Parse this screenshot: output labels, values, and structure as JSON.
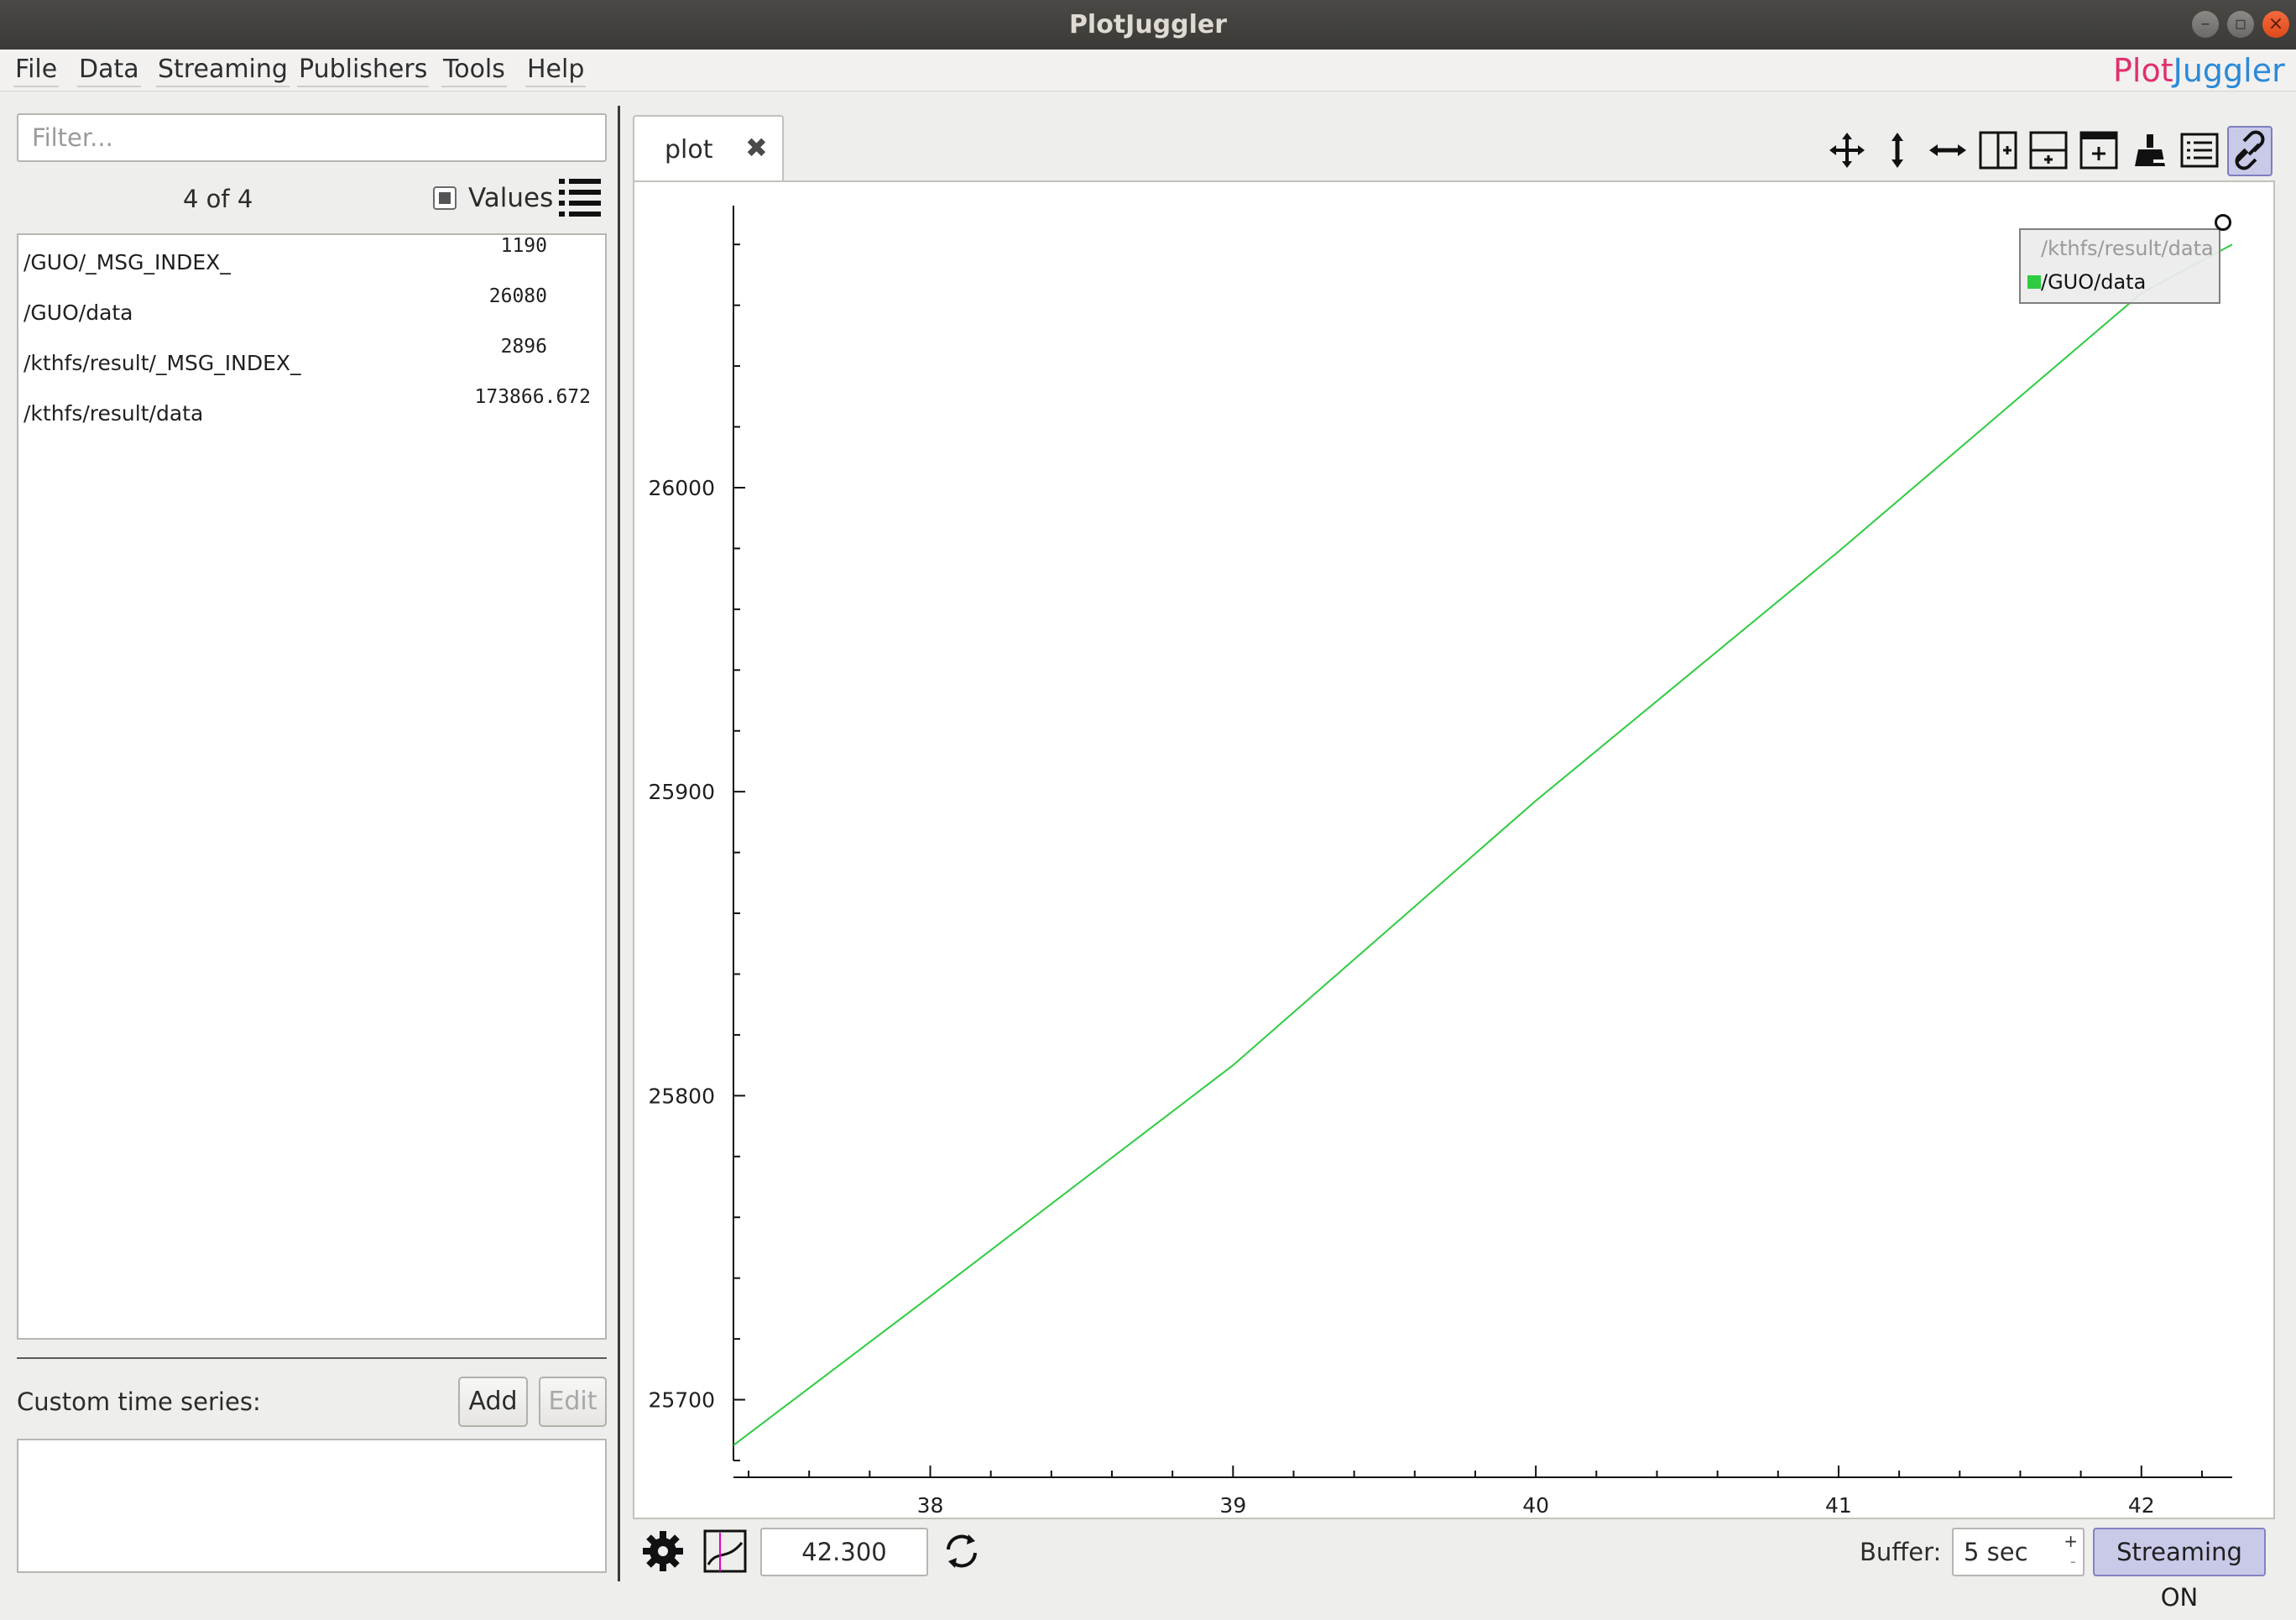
{
  "window": {
    "title": "PlotJuggler"
  },
  "menu": {
    "items": [
      "File",
      "Data",
      "Streaming",
      "Publishers",
      "Tools",
      "Help"
    ]
  },
  "logo": {
    "part1": "Plot",
    "part2": "Juggler"
  },
  "left_panel": {
    "filter_placeholder": "Filter...",
    "count": "4 of 4",
    "values_label": "Values",
    "topics": [
      {
        "name": "/GUO/_MSG_INDEX_",
        "value": "1190"
      },
      {
        "name": "/GUO/data",
        "value": "26080"
      },
      {
        "name": "/kthfs/result/_MSG_INDEX_",
        "value": "2896"
      },
      {
        "name": "/kthfs/result/data",
        "value": "173866.672"
      }
    ],
    "custom_label": "Custom time series:",
    "add_label": "Add",
    "edit_label": "Edit"
  },
  "tab": {
    "label": "plot",
    "close": "✖"
  },
  "legend": {
    "items": [
      "/kthfs/result/data",
      "/GUO/data"
    ],
    "active_color": "#2ecc40"
  },
  "bottom": {
    "time_value": "42.300",
    "buffer_label": "Buffer:",
    "buffer_value": "5 sec",
    "streaming_label": "Streaming ON"
  },
  "chart_data": {
    "type": "line",
    "xlabel": "",
    "ylabel": "",
    "xlim": [
      37.35,
      42.3
    ],
    "ylim": [
      25680,
      26090
    ],
    "x_ticks": [
      38,
      39,
      40,
      41,
      42
    ],
    "y_ticks": [
      25700,
      25800,
      25900,
      26000
    ],
    "series": [
      {
        "name": "/GUO/data",
        "color": "#2ecc40",
        "x": [
          37.35,
          38.0,
          39.0,
          40.0,
          41.0,
          42.0,
          42.3
        ],
        "y": [
          25685,
          25734,
          25810,
          25897,
          25979,
          26064,
          26080
        ]
      }
    ]
  }
}
